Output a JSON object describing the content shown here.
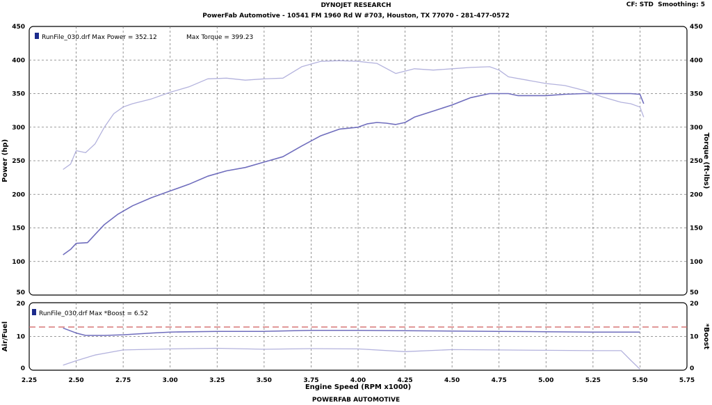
{
  "header": {
    "title": "DYNOJET RESEARCH",
    "subtitle": "PowerFab Automotive - 10541 FM 1960 Rd W #703, Houston, TX 77070 - 281-477-0572",
    "cf_label": "CF: STD",
    "smoothing_label": "Smoothing: 5"
  },
  "footer": {
    "text": "POWERFAB AUTOMOTIVE"
  },
  "colors": {
    "power": "#6f6dbd",
    "torque": "#b3b2dd",
    "air_fuel": "#6f6dbd",
    "boost": "#b3b2dd",
    "afr_target": "#d46a6a",
    "grid": "#7a7a7a",
    "legend_swatch": "#1c2b8c"
  },
  "chart_data": [
    {
      "type": "line",
      "panel": "power-torque",
      "legend": {
        "run": "RunFile_030.drf",
        "max_power": "Max Power = 352.12",
        "max_torque": "Max Torque = 399.23"
      },
      "xlabel": "Engine Speed (RPM x1000)",
      "xlim": [
        2.25,
        5.75
      ],
      "xticks": [
        "2.25",
        "2.50",
        "2.75",
        "3.00",
        "3.25",
        "3.50",
        "3.75",
        "4.00",
        "4.25",
        "4.50",
        "4.75",
        "5.00",
        "5.25",
        "5.50",
        "5.75"
      ],
      "ylabel_left": "Power (hp)",
      "ylabel_right": "Torque (ft-lbs)",
      "ylim": [
        50,
        450
      ],
      "yticks": [
        "50",
        "100",
        "150",
        "200",
        "250",
        "300",
        "350",
        "400",
        "450"
      ],
      "grid": true,
      "series": [
        {
          "key": "power",
          "x": [
            2.43,
            2.47,
            2.5,
            2.56,
            2.6,
            2.65,
            2.72,
            2.8,
            2.9,
            3.0,
            3.1,
            3.2,
            3.3,
            3.4,
            3.5,
            3.6,
            3.7,
            3.8,
            3.9,
            4.0,
            4.05,
            4.1,
            4.15,
            4.2,
            4.25,
            4.3,
            4.4,
            4.5,
            4.6,
            4.7,
            4.75,
            4.8,
            4.85,
            4.9,
            5.0,
            5.1,
            5.2,
            5.3,
            5.4,
            5.45,
            5.5,
            5.52
          ],
          "y": [
            110,
            118,
            127,
            128,
            140,
            155,
            170,
            183,
            195,
            205,
            215,
            227,
            235,
            240,
            248,
            256,
            272,
            287,
            297,
            300,
            305,
            307,
            306,
            304,
            307,
            315,
            324,
            333,
            344,
            350,
            350,
            350,
            347,
            347,
            347,
            349,
            350,
            350,
            350,
            350,
            349,
            335
          ]
        },
        {
          "key": "torque",
          "x": [
            2.43,
            2.47,
            2.5,
            2.55,
            2.6,
            2.65,
            2.7,
            2.75,
            2.8,
            2.9,
            3.0,
            3.1,
            3.2,
            3.3,
            3.4,
            3.5,
            3.6,
            3.7,
            3.8,
            3.9,
            4.0,
            4.1,
            4.2,
            4.3,
            4.4,
            4.5,
            4.6,
            4.7,
            4.75,
            4.8,
            4.9,
            5.0,
            5.1,
            5.2,
            5.3,
            5.4,
            5.45,
            5.5,
            5.52
          ],
          "y": [
            237,
            245,
            265,
            262,
            275,
            300,
            320,
            330,
            335,
            342,
            352,
            360,
            372,
            373,
            370,
            372,
            373,
            390,
            398,
            399,
            398,
            395,
            380,
            387,
            385,
            387,
            389,
            390,
            385,
            375,
            370,
            365,
            362,
            355,
            345,
            337,
            335,
            330,
            315
          ]
        }
      ]
    },
    {
      "type": "line",
      "panel": "air-fuel-boost",
      "legend": {
        "run": "RunFile_030.drf",
        "max_boost": "Max *Boost = 6.52"
      },
      "ylabel_left": "Air/Fuel",
      "ylabel_right": "*Boost",
      "ylim": [
        0,
        20
      ],
      "yticks": [
        "0",
        "10",
        "20"
      ],
      "grid": true,
      "afr_target": 12.8,
      "series": [
        {
          "key": "air_fuel",
          "x": [
            2.43,
            2.5,
            2.55,
            2.65,
            2.75,
            2.9,
            3.0,
            3.25,
            3.5,
            3.75,
            4.0,
            4.25,
            4.5,
            4.75,
            5.0,
            5.25,
            5.5
          ],
          "y": [
            12.5,
            11.0,
            10.3,
            10.3,
            10.5,
            11.0,
            11.3,
            11.5,
            11.5,
            11.8,
            11.8,
            11.7,
            11.6,
            11.5,
            11.4,
            11.3,
            11.3
          ]
        },
        {
          "key": "boost",
          "x": [
            2.43,
            2.5,
            2.6,
            2.75,
            3.0,
            3.25,
            3.5,
            3.75,
            4.0,
            4.25,
            4.5,
            4.75,
            5.0,
            5.25,
            5.4,
            5.45,
            5.5
          ],
          "y": [
            1.5,
            2.8,
            4.5,
            6.0,
            6.3,
            6.5,
            6.2,
            6.4,
            6.3,
            5.5,
            6.1,
            6.0,
            5.9,
            5.8,
            5.8,
            3.0,
            0.3
          ]
        }
      ]
    }
  ]
}
